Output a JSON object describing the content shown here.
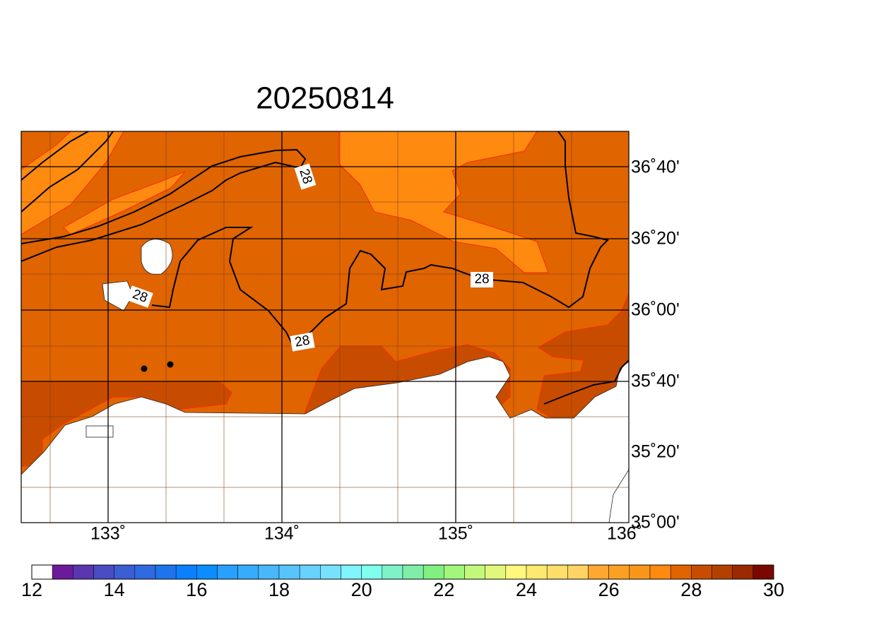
{
  "title": "20250814",
  "map": {
    "lat_labels": [
      "36˚40'",
      "36˚20'",
      "36˚00'",
      "35˚40'",
      "35˚20'",
      "35˚00'"
    ],
    "lon_labels": [
      "133˚",
      "134˚",
      "135˚",
      "136˚"
    ],
    "contour_labels": [
      "28",
      "28",
      "28",
      "28"
    ]
  },
  "colorbar": {
    "ticks": [
      12,
      14,
      16,
      18,
      20,
      22,
      24,
      26,
      28,
      30
    ],
    "colors": [
      "#ffffff",
      "#6c1a9a",
      "#5a36b0",
      "#4a4cc4",
      "#3b5ed4",
      "#2f6ae2",
      "#1f74ee",
      "#0a80ff",
      "#0a8eff",
      "#28a0ff",
      "#38acfc",
      "#48b8fa",
      "#58c4fc",
      "#68d2ff",
      "#76e2ff",
      "#80f4ff",
      "#80ffee",
      "#80f2c8",
      "#80eea8",
      "#80f080",
      "#a2f67c",
      "#c2f87c",
      "#e2f87c",
      "#fff87c",
      "#ffe870",
      "#ffde6a",
      "#ffd464",
      "#ffa830",
      "#fba022",
      "#f9961a",
      "#ff8a10",
      "#e06400",
      "#c84c00",
      "#b44000",
      "#9c2a00",
      "#7a0800"
    ]
  }
}
